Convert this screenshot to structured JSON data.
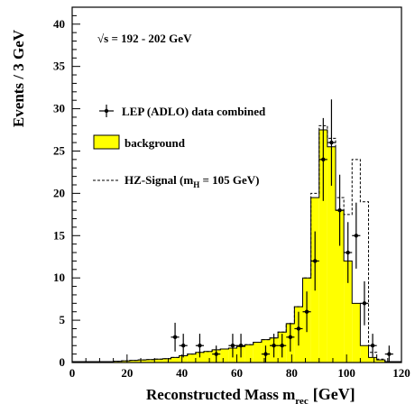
{
  "chart_data": {
    "type": "bar",
    "xlabel": "Reconstructed Mass m",
    "xlabel_sub": "rec",
    "xlabel_unit": "[GeV]",
    "ylabel": "Events / 3 GeV",
    "xlim": [
      0,
      120
    ],
    "ylim": [
      0,
      42
    ],
    "xticks": [
      "0",
      "20",
      "40",
      "60",
      "80",
      "100",
      "120"
    ],
    "yticks": [
      "0",
      "5",
      "10",
      "15",
      "20",
      "25",
      "30",
      "35",
      "40"
    ],
    "grid": false,
    "annotation": "√s = 192 - 202 GeV",
    "legend": {
      "data": "LEP (ADLO) data combined",
      "background": "background",
      "signal_main": "HZ-Signal (m",
      "signal_sub": "H",
      "signal_rest": " = 105 GeV)"
    },
    "bin_width": 3,
    "bin_edges_start": 0,
    "background": [
      0.1,
      0.1,
      0.1,
      0.1,
      0.1,
      0.15,
      0.2,
      0.25,
      0.3,
      0.35,
      0.4,
      0.45,
      0.6,
      0.8,
      1.0,
      1.2,
      1.3,
      1.5,
      1.6,
      1.7,
      1.9,
      2.1,
      2.4,
      2.7,
      2.9,
      3.6,
      4.6,
      6.6,
      10.0,
      19.5,
      27.5,
      25.5,
      18.0,
      12.0,
      7.0,
      2.0,
      0.6,
      0.3,
      0.1,
      0.1
    ],
    "signal_plus_background": [
      0.1,
      0.1,
      0.1,
      0.1,
      0.1,
      0.15,
      0.2,
      0.25,
      0.3,
      0.35,
      0.4,
      0.45,
      0.6,
      0.8,
      1.0,
      1.2,
      1.3,
      1.5,
      1.6,
      1.7,
      1.9,
      2.1,
      2.4,
      2.7,
      2.9,
      3.6,
      4.6,
      6.6,
      10.0,
      20.0,
      28.0,
      26.5,
      19.5,
      17.5,
      24.0,
      19.0,
      1.2,
      0.4,
      0.1,
      0.1
    ],
    "data_points": [
      {
        "x": 37.5,
        "y": 3,
        "yerr": 1.7
      },
      {
        "x": 40.5,
        "y": 2,
        "yerr": 1.4
      },
      {
        "x": 46.5,
        "y": 2,
        "yerr": 1.4
      },
      {
        "x": 52.5,
        "y": 1,
        "yerr": 1.0
      },
      {
        "x": 58.5,
        "y": 2,
        "yerr": 1.4
      },
      {
        "x": 61.5,
        "y": 2,
        "yerr": 1.4
      },
      {
        "x": 70.5,
        "y": 1,
        "yerr": 1.0
      },
      {
        "x": 73.5,
        "y": 2,
        "yerr": 1.4
      },
      {
        "x": 76.5,
        "y": 2,
        "yerr": 1.4
      },
      {
        "x": 79.5,
        "y": 3,
        "yerr": 1.7
      },
      {
        "x": 82.5,
        "y": 4,
        "yerr": 2.0
      },
      {
        "x": 85.5,
        "y": 6,
        "yerr": 2.4
      },
      {
        "x": 88.5,
        "y": 12,
        "yerr": 3.5
      },
      {
        "x": 91.5,
        "y": 24,
        "yerr": 4.9
      },
      {
        "x": 94.5,
        "y": 26,
        "yerr": 5.1
      },
      {
        "x": 97.5,
        "y": 18,
        "yerr": 4.2
      },
      {
        "x": 100.5,
        "y": 13,
        "yerr": 3.6
      },
      {
        "x": 103.5,
        "y": 15,
        "yerr": 3.9
      },
      {
        "x": 106.5,
        "y": 7,
        "yerr": 2.6
      },
      {
        "x": 109.5,
        "y": 2,
        "yerr": 1.4
      },
      {
        "x": 115.5,
        "y": 1,
        "yerr": 1.0
      }
    ],
    "colors": {
      "background_fill": "#ffff00",
      "line": "#000000"
    }
  }
}
